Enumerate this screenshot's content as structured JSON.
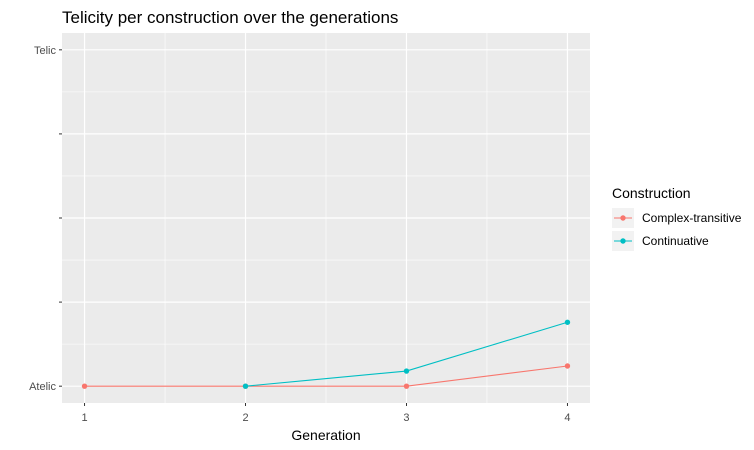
{
  "chart_data": {
    "type": "line",
    "title": "Telicity per construction over the generations",
    "xlabel": "Generation",
    "ylabel": "",
    "x": [
      1,
      2,
      3,
      4
    ],
    "x_tick_labels": [
      "1",
      "2",
      "3",
      "4"
    ],
    "xlim": [
      0.86,
      4.14
    ],
    "ylim": [
      -0.05,
      1.05
    ],
    "y_ticks": [
      0,
      0.25,
      0.5,
      0.75,
      1
    ],
    "y_tick_labels": [
      "Atelic",
      "",
      "",
      "",
      "Telic"
    ],
    "grid": true,
    "legend_title": "Construction",
    "legend_position": "right",
    "series": [
      {
        "name": "Complex-transitive",
        "color": "#F8766D",
        "values": [
          0,
          0,
          0,
          0.06
        ]
      },
      {
        "name": "Continuative",
        "color": "#00BFC4",
        "values": [
          null,
          0,
          0.045,
          0.19
        ]
      }
    ]
  }
}
